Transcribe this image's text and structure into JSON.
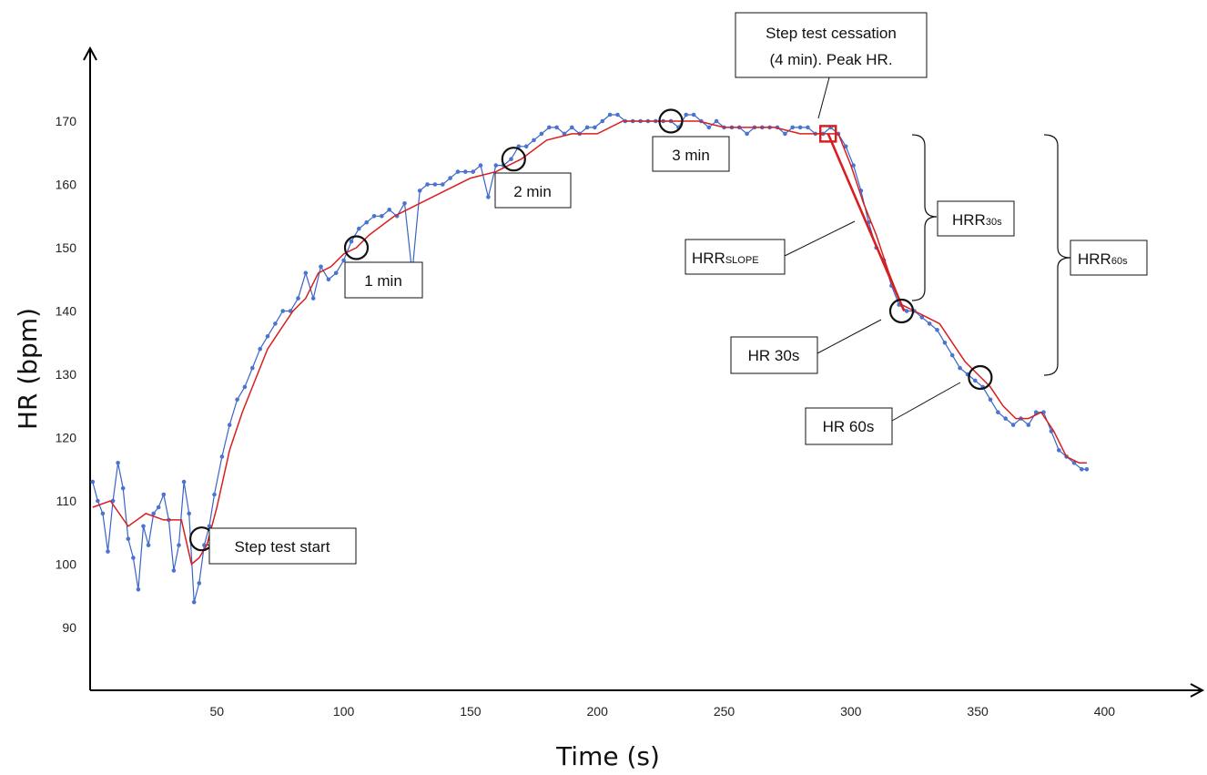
{
  "colors": {
    "raw_series": "#3a63c8",
    "raw_points": "#4a74d0",
    "smoothed_series": "#d81e1e",
    "axis": "#000000",
    "marker": "#000000",
    "peak_marker": "#d81e1e"
  },
  "chart_data": {
    "type": "line",
    "title": "",
    "xlabel": "Time (s)",
    "ylabel": "HR (bpm)",
    "xlim": [
      0,
      440
    ],
    "ylim": [
      80,
      180
    ],
    "x_ticks": [
      50,
      100,
      150,
      200,
      250,
      300,
      350,
      400
    ],
    "y_ticks": [
      90,
      100,
      110,
      120,
      130,
      140,
      150,
      160,
      170
    ],
    "grid": false,
    "legend": "none",
    "series": [
      {
        "role": "raw",
        "x": [
          1,
          3,
          5,
          7,
          9,
          11,
          13,
          15,
          17,
          19,
          21,
          23,
          25,
          27,
          29,
          31,
          33,
          35,
          37,
          39,
          41,
          43,
          45,
          47,
          49,
          52,
          55,
          58,
          61,
          64,
          67,
          70,
          73,
          76,
          79,
          82,
          85,
          88,
          91,
          94,
          97,
          100,
          103,
          106,
          109,
          112,
          115,
          118,
          121,
          124,
          127,
          130,
          133,
          136,
          139,
          142,
          145,
          148,
          151,
          154,
          157,
          160,
          163,
          166,
          169,
          172,
          175,
          178,
          181,
          184,
          187,
          190,
          193,
          196,
          199,
          202,
          205,
          208,
          211,
          214,
          217,
          220,
          223,
          226,
          229,
          232,
          235,
          238,
          241,
          244,
          247,
          250,
          253,
          256,
          259,
          262,
          265,
          268,
          271,
          274,
          277,
          280,
          283,
          286,
          289,
          292,
          295,
          298,
          301,
          304,
          307,
          310,
          313,
          316,
          319,
          322,
          325,
          328,
          331,
          334,
          337,
          340,
          343,
          346,
          349,
          352,
          355,
          358,
          361,
          364,
          367,
          370,
          373,
          376,
          379,
          382,
          385,
          388,
          391,
          393
        ],
        "values": [
          113,
          110,
          108,
          102,
          110,
          116,
          112,
          104,
          101,
          96,
          106,
          103,
          108,
          109,
          111,
          107,
          99,
          103,
          113,
          108,
          94,
          97,
          103,
          106,
          111,
          117,
          122,
          126,
          128,
          131,
          134,
          136,
          138,
          140,
          140,
          142,
          146,
          142,
          147,
          145,
          146,
          148,
          151,
          153,
          154,
          155,
          155,
          156,
          155,
          157,
          146,
          159,
          160,
          160,
          160,
          161,
          162,
          162,
          162,
          163,
          158,
          163,
          163,
          164,
          166,
          166,
          167,
          168,
          169,
          169,
          168,
          169,
          168,
          169,
          169,
          170,
          171,
          171,
          170,
          170,
          170,
          170,
          170,
          170,
          170,
          169,
          171,
          171,
          170,
          169,
          170,
          169,
          169,
          169,
          168,
          169,
          169,
          169,
          169,
          168,
          169,
          169,
          169,
          168,
          168,
          169,
          168,
          166,
          163,
          159,
          154,
          150,
          148,
          144,
          141,
          140,
          140,
          139,
          138,
          137,
          135,
          133,
          131,
          130,
          129,
          128,
          126,
          124,
          123,
          122,
          123,
          122,
          124,
          124,
          121,
          118,
          117,
          116,
          115,
          115
        ]
      },
      {
        "role": "smoothed",
        "x": [
          1,
          8,
          15,
          22,
          29,
          36,
          40,
          43,
          46,
          50,
          55,
          60,
          65,
          70,
          75,
          80,
          85,
          90,
          95,
          100,
          105,
          110,
          120,
          130,
          140,
          150,
          160,
          170,
          180,
          190,
          200,
          210,
          220,
          230,
          240,
          250,
          260,
          270,
          280,
          290,
          295,
          300,
          305,
          310,
          315,
          320,
          325,
          330,
          335,
          340,
          345,
          350,
          355,
          360,
          365,
          370,
          375,
          380,
          385,
          390,
          393
        ],
        "values": [
          109,
          110,
          106,
          108,
          107,
          107,
          100,
          101,
          103,
          109,
          118,
          124,
          129,
          134,
          137,
          140,
          142,
          146,
          147,
          149,
          150,
          152,
          155,
          157,
          159,
          161,
          162,
          164,
          167,
          168,
          168,
          170,
          170,
          170,
          170,
          169,
          169,
          169,
          168,
          168,
          168,
          163,
          157,
          152,
          146,
          141,
          140,
          139,
          138,
          135,
          132,
          130,
          128,
          125,
          123,
          123,
          124,
          121,
          117,
          116,
          116
        ]
      }
    ],
    "peak_hr_slope_line": {
      "x": [
        291,
        321
      ],
      "values": [
        168,
        140
      ]
    },
    "annotations": [
      {
        "id": "step-test-start",
        "text": "Step test start",
        "x": 44,
        "y": 104
      },
      {
        "id": "one-min",
        "text": "1 min",
        "x": 105,
        "y": 150
      },
      {
        "id": "two-min",
        "text": "2 min",
        "x": 167,
        "y": 164
      },
      {
        "id": "three-min",
        "text": "3 min",
        "x": 229,
        "y": 170
      },
      {
        "id": "hr-30s",
        "text": "HR 30s",
        "x": 320,
        "y": 140
      },
      {
        "id": "hr-60s",
        "text": "HR 60s",
        "x": 351,
        "y": 129.5
      }
    ],
    "callouts": {
      "peak_line1": "Step test cessation",
      "peak_line2": "(4 min). Peak HR.",
      "hrr_slope_main": "HRR",
      "hrr_slope_sub": "SLOPE",
      "hrr30_main": "HRR",
      "hrr30_sub": "30s",
      "hrr60_main": "HRR",
      "hrr60_sub": "60s"
    }
  }
}
